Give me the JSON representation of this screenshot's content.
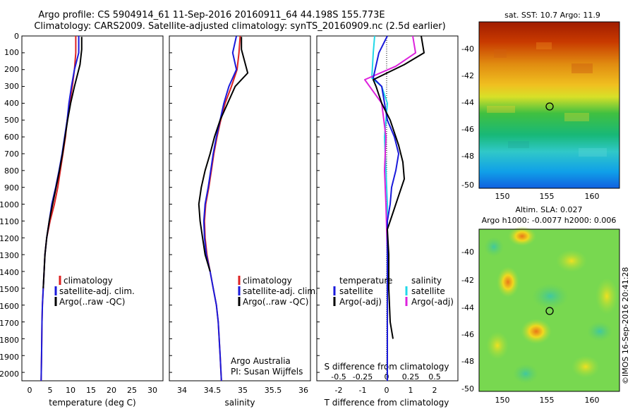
{
  "title": {
    "line1": "Argo profile: CS 5904914_61 11-Sep-2016 20160911_64 44.198S 155.773E",
    "line2": "Climatology: CARS2009. Satellite-adjusted climatology: synTS_20160909.nc (2.5d earlier)"
  },
  "colors": {
    "climatology": "#dd2222",
    "satellite": "#1a1adb",
    "argo": "#000000",
    "sal_sat": "#22d8e8",
    "sal_argo": "#dd22dd"
  },
  "depth_ticks": [
    "0",
    "100",
    "200",
    "300",
    "400",
    "500",
    "600",
    "700",
    "800",
    "900",
    "1000",
    "1100",
    "1200",
    "1300",
    "1400",
    "1500",
    "1600",
    "1700",
    "1800",
    "1900",
    "2000"
  ],
  "panel_temp": {
    "xlabel": "temperature (deg C)",
    "xticks": [
      "0",
      "5",
      "10",
      "15",
      "20",
      "25",
      "30"
    ],
    "legend": [
      "climatology",
      "satellite-adj. clim.",
      "Argo(..raw -QC)"
    ]
  },
  "panel_sal": {
    "xlabel": "salinity",
    "xticks": [
      "34",
      "34.5",
      "35",
      "35.5",
      "36"
    ],
    "legend": [
      "climatology",
      "satellite-adj. clim.",
      "Argo(..raw -QC)"
    ],
    "credit1": "Argo Australia",
    "credit2": "PI: Susan Wijffels"
  },
  "panel_diff": {
    "xlabel": "T difference from climatology",
    "xticks": [
      "-2",
      "-1",
      "0",
      "1",
      "2"
    ],
    "top_label": "S difference from climatology",
    "top_ticks": [
      "-0.5",
      "-0.25",
      "0",
      "0.25",
      "0.5"
    ],
    "legend_t_head": "temperature",
    "legend_t": [
      "satellite",
      "Argo(-adj)"
    ],
    "legend_s_head": "salinity",
    "legend_s": [
      "satellite",
      "Argo(-adj)"
    ]
  },
  "map_sst": {
    "title": "sat. SST: 10.7  Argo: 11.9",
    "yticks": [
      "-40",
      "-42",
      "-44",
      "-46",
      "-48",
      "-50"
    ],
    "xticks": [
      "150",
      "155",
      "160"
    ]
  },
  "map_sla": {
    "title1": "Altim. SLA: 0.027",
    "title2": "Argo h1000: -0.0077 h2000: 0.006",
    "yticks": [
      "-40",
      "-42",
      "-44",
      "-46",
      "-48",
      "-50"
    ],
    "xticks": [
      "150",
      "155",
      "160"
    ]
  },
  "stamp": "©IMOS 16-Sep-2016 20:41:28",
  "chart_data": [
    {
      "type": "line",
      "title": "",
      "xlabel": "temperature (deg C)",
      "ylabel": "",
      "xlim": [
        -2,
        31
      ],
      "ylim": [
        2050,
        0
      ],
      "series": [
        {
          "name": "climatology",
          "x": [
            10.6,
            10.6,
            10.3,
            9.8,
            9.2,
            8.6,
            8.2,
            7.6,
            7.0,
            6.4,
            5.6,
            4.6,
            3.8,
            3.4,
            3.2,
            3.0,
            2.8,
            2.7,
            2.6,
            2.5
          ],
          "y": [
            0,
            100,
            200,
            300,
            400,
            500,
            600,
            700,
            800,
            900,
            1000,
            1100,
            1200,
            1300,
            1400,
            1500,
            1600,
            1700,
            1900,
            2050
          ]
        },
        {
          "name": "satellite-adj. clim.",
          "x": [
            11.3,
            11.3,
            10.3,
            9.6,
            9.0,
            8.6,
            8.0,
            7.4,
            6.7,
            5.9,
            5.0,
            4.4,
            3.8,
            3.4,
            3.2,
            3.0,
            2.8,
            2.7,
            2.6,
            2.5
          ],
          "y": [
            0,
            100,
            200,
            300,
            400,
            500,
            600,
            700,
            800,
            900,
            1000,
            1100,
            1200,
            1300,
            1400,
            1500,
            1600,
            1700,
            1900,
            2050
          ]
        },
        {
          "name": "Argo(..raw -QC)",
          "x": [
            12.0,
            12.0,
            11.6,
            10.3,
            9.4,
            8.7,
            8.1,
            7.5,
            6.8,
            6.0,
            5.2,
            4.4,
            3.8,
            3.4,
            3.2,
            3.0
          ],
          "y": [
            5,
            80,
            170,
            300,
            400,
            500,
            600,
            700,
            800,
            900,
            1000,
            1100,
            1200,
            1300,
            1400,
            1500
          ]
        }
      ]
    },
    {
      "type": "line",
      "title": "",
      "xlabel": "salinity",
      "ylabel": "",
      "xlim": [
        33.85,
        36.1
      ],
      "ylim": [
        2050,
        0
      ],
      "series": [
        {
          "name": "climatology",
          "x": [
            34.98,
            34.96,
            34.93,
            34.84,
            34.74,
            34.67,
            34.61,
            34.56,
            34.52,
            34.48,
            34.43,
            34.41,
            34.42,
            34.45,
            34.5,
            34.55,
            34.6,
            34.63,
            34.66,
            34.68
          ],
          "y": [
            0,
            100,
            200,
            300,
            400,
            500,
            600,
            700,
            800,
            900,
            1000,
            1100,
            1200,
            1300,
            1400,
            1500,
            1600,
            1700,
            1900,
            2050
          ]
        },
        {
          "name": "satellite-adj. clim.",
          "x": [
            34.92,
            34.86,
            34.92,
            34.8,
            34.72,
            34.66,
            34.6,
            34.55,
            34.51,
            34.47,
            34.42,
            34.4,
            34.41,
            34.44,
            34.5,
            34.55,
            34.6,
            34.63,
            34.66,
            34.68
          ],
          "y": [
            0,
            100,
            200,
            300,
            400,
            500,
            600,
            700,
            800,
            900,
            1000,
            1100,
            1200,
            1300,
            1400,
            1500,
            1600,
            1700,
            1900,
            2050
          ]
        },
        {
          "name": "Argo(..raw -QC)",
          "x": [
            35.0,
            35.0,
            35.1,
            34.9,
            34.78,
            34.66,
            34.57,
            34.5,
            34.42,
            34.36,
            34.32,
            34.34,
            34.38,
            34.42,
            34.5
          ],
          "y": [
            5,
            80,
            220,
            300,
            400,
            500,
            600,
            700,
            800,
            900,
            1000,
            1100,
            1200,
            1300,
            1400
          ]
        }
      ]
    },
    {
      "type": "line",
      "title": "",
      "xlabel": "T difference from climatology",
      "ylabel": "",
      "xlim": [
        -2.5,
        2.5
      ],
      "ylim": [
        2050,
        0
      ],
      "series": [
        {
          "name": "satellite",
          "x": [
            0.0,
            -0.3,
            -0.5,
            -0.2,
            -0.1,
            0.0,
            0.25,
            0.4,
            0.3,
            0.15,
            0.1,
            0.0,
            0.0,
            0.0,
            0.0,
            0.0
          ],
          "y": [
            0,
            100,
            250,
            300,
            400,
            500,
            600,
            700,
            800,
            900,
            1000,
            1100,
            1200,
            1400,
            1700,
            2050
          ]
        },
        {
          "name": "Argo(-adj)",
          "x": [
            1.2,
            1.3,
            0.6,
            -0.5,
            -0.4,
            -0.2,
            0.1,
            0.4,
            0.55,
            0.6,
            0.4,
            0.2,
            0.0,
            0.05,
            0.05,
            0.1,
            0.2
          ],
          "y": [
            0,
            100,
            170,
            260,
            300,
            400,
            500,
            650,
            750,
            850,
            950,
            1050,
            1150,
            1300,
            1500,
            1700,
            1800
          ]
        },
        {
          "name": "sal satellite",
          "x": [
            -0.45,
            -0.5,
            -0.55,
            -0.2,
            0.0,
            -0.1,
            -0.05,
            0.0,
            0.0,
            0.0,
            0.0
          ],
          "y": [
            0,
            100,
            250,
            300,
            400,
            600,
            800,
            1000,
            1300,
            1700,
            2050
          ]
        },
        {
          "name": "sal Argo(-adj)",
          "x": [
            0.9,
            1.0,
            0.3,
            -0.8,
            -0.2,
            -0.05,
            -0.1,
            -0.05,
            0.0,
            0.0,
            0.0
          ],
          "y": [
            0,
            100,
            180,
            260,
            400,
            600,
            800,
            1000,
            1300,
            1600,
            1700
          ]
        }
      ]
    }
  ]
}
